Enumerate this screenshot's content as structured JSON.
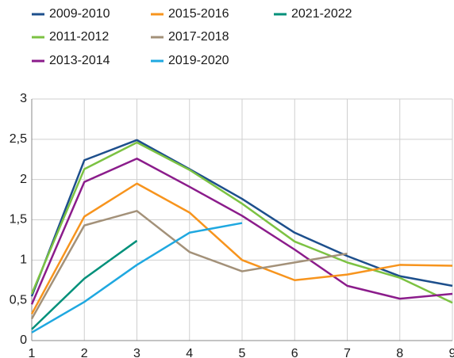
{
  "chart_data": {
    "type": "line",
    "x": [
      1,
      2,
      3,
      4,
      5,
      6,
      7,
      8,
      9
    ],
    "xlim": [
      1,
      9
    ],
    "xticks": [
      1,
      2,
      3,
      4,
      5,
      6,
      7,
      8,
      9
    ],
    "ylim": [
      0,
      3
    ],
    "yticks": [
      0,
      {
        "value": 0.5,
        "label": "0,5"
      },
      1,
      {
        "value": 1.5,
        "label": "1,5"
      },
      2,
      {
        "value": 2.5,
        "label": "2,5"
      },
      3
    ],
    "grid": true,
    "series": [
      {
        "name": "2009-2010",
        "color": "#1d4f8c",
        "values": [
          0.55,
          2.24,
          2.49,
          2.13,
          1.76,
          1.34,
          1.05,
          0.8,
          0.68
        ]
      },
      {
        "name": "2011-2012",
        "color": "#7cc242",
        "values": [
          0.58,
          2.13,
          2.46,
          2.12,
          1.7,
          1.23,
          0.97,
          0.78,
          0.47
        ]
      },
      {
        "name": "2013-2014",
        "color": "#8b1c8b",
        "values": [
          0.45,
          1.97,
          2.26,
          1.91,
          1.55,
          1.13,
          0.68,
          0.52,
          0.58
        ]
      },
      {
        "name": "2015-2016",
        "color": "#f7941d",
        "values": [
          0.33,
          1.54,
          1.95,
          1.59,
          1.0,
          0.75,
          0.82,
          0.94,
          0.93
        ]
      },
      {
        "name": "2017-2018",
        "color": "#a39179",
        "values": [
          0.27,
          1.43,
          1.61,
          1.1,
          0.86,
          0.97,
          1.08,
          null,
          null
        ]
      },
      {
        "name": "2019-2020",
        "color": "#1fa8e0",
        "values": [
          0.1,
          0.48,
          0.94,
          1.34,
          1.46,
          null,
          null,
          null,
          null
        ]
      },
      {
        "name": "2021-2022",
        "color": "#00907a",
        "values": [
          0.14,
          0.77,
          1.24,
          null,
          null,
          null,
          null,
          null,
          null
        ]
      }
    ]
  }
}
